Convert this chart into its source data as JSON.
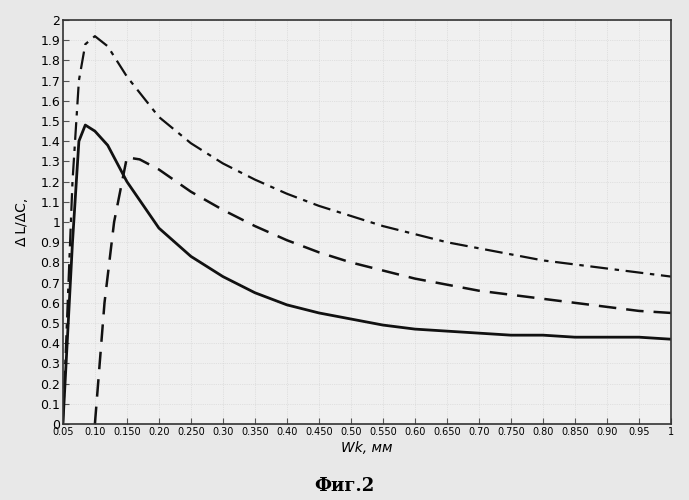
{
  "title": "",
  "xlabel": "Wk, мм",
  "ylabel": "Δ L/ΔC,",
  "caption": "Фиг.2",
  "xlim": [
    0.05,
    1.0
  ],
  "ylim": [
    0,
    2.0
  ],
  "xticks": [
    0.05,
    0.1,
    0.15,
    0.2,
    0.25,
    0.3,
    0.35,
    0.4,
    0.45,
    0.5,
    0.55,
    0.6,
    0.65,
    0.7,
    0.75,
    0.8,
    0.85,
    0.9,
    0.95,
    1.0
  ],
  "xtick_labels": [
    "0.05",
    "0.10",
    "0.150",
    "0.20",
    "0.250",
    "0.30",
    "0.350",
    "0.40",
    "0.450",
    "0.50",
    "0.550",
    "0.60",
    "0.650",
    "0.70",
    "0.750",
    "0.80",
    "0.850",
    "0.90",
    "0.95",
    "1"
  ],
  "ytick_step": 0.1,
  "fig_facecolor": "#e8e8e8",
  "ax_facecolor": "#f0f0f0",
  "grid_color": "#d0d0d0",
  "line_color": "#111111",
  "curves": {
    "solid": {
      "x": [
        0.05,
        0.065,
        0.075,
        0.085,
        0.1,
        0.12,
        0.15,
        0.2,
        0.25,
        0.3,
        0.35,
        0.4,
        0.45,
        0.5,
        0.55,
        0.6,
        0.65,
        0.7,
        0.75,
        0.8,
        0.85,
        0.9,
        0.95,
        1.0
      ],
      "y": [
        0.0,
        0.9,
        1.4,
        1.48,
        1.45,
        1.38,
        1.2,
        0.97,
        0.83,
        0.73,
        0.65,
        0.59,
        0.55,
        0.52,
        0.49,
        0.47,
        0.46,
        0.45,
        0.44,
        0.44,
        0.43,
        0.43,
        0.43,
        0.42
      ],
      "style": "solid",
      "linewidth": 2.0,
      "color": "#111111"
    },
    "dashed": {
      "x": [
        0.1,
        0.115,
        0.13,
        0.15,
        0.17,
        0.2,
        0.25,
        0.3,
        0.35,
        0.4,
        0.45,
        0.5,
        0.55,
        0.6,
        0.65,
        0.7,
        0.75,
        0.8,
        0.85,
        0.9,
        0.95,
        1.0
      ],
      "y": [
        0.0,
        0.6,
        1.0,
        1.32,
        1.31,
        1.26,
        1.15,
        1.06,
        0.98,
        0.91,
        0.85,
        0.8,
        0.76,
        0.72,
        0.69,
        0.66,
        0.64,
        0.62,
        0.6,
        0.58,
        0.56,
        0.55
      ],
      "style": "dashed",
      "linewidth": 1.8,
      "color": "#111111"
    },
    "dashdot": {
      "x": [
        0.05,
        0.065,
        0.075,
        0.085,
        0.1,
        0.12,
        0.15,
        0.2,
        0.25,
        0.3,
        0.35,
        0.4,
        0.45,
        0.5,
        0.55,
        0.6,
        0.65,
        0.7,
        0.75,
        0.8,
        0.85,
        0.9,
        0.95,
        1.0
      ],
      "y": [
        0.0,
        1.2,
        1.7,
        1.88,
        1.92,
        1.87,
        1.72,
        1.52,
        1.39,
        1.29,
        1.21,
        1.14,
        1.08,
        1.03,
        0.98,
        0.94,
        0.9,
        0.87,
        0.84,
        0.81,
        0.79,
        0.77,
        0.75,
        0.73
      ],
      "style": "dashdot",
      "linewidth": 1.6,
      "color": "#111111"
    }
  }
}
